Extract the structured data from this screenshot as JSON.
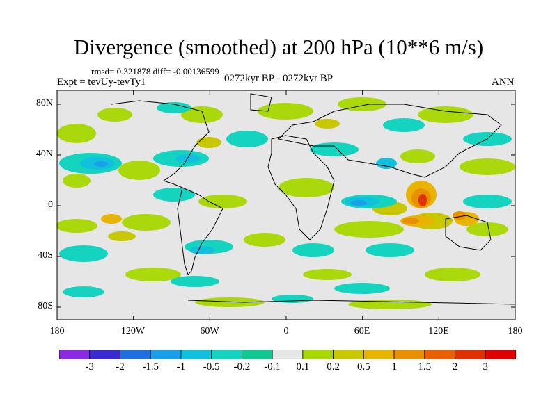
{
  "title": "Divergence (smoothed) at 200 hPa (10**6 m/s)",
  "stats_line": "rmsd= 0.321878 diff= -0.00136599",
  "experiment": "Expt = tevUy-tevTy1",
  "period": "0272kyr BP - 0272kyr BP",
  "season": "ANN",
  "map": {
    "projection": "cylindrical equidistant",
    "lon_range": [
      -180,
      180
    ],
    "lat_range": [
      -90,
      90
    ],
    "lat_ticks": [
      "80N",
      "40N",
      "0",
      "40S",
      "80S"
    ],
    "lon_ticks": [
      "180",
      "120W",
      "60W",
      "0",
      "60E",
      "120E",
      "180"
    ],
    "background_color": "#e6e6e6",
    "coastline_color": "#000000"
  },
  "colorbar": {
    "labels": [
      "-3",
      "-2",
      "-1.5",
      "-1",
      "-0.5",
      "-0.2",
      "-0.1",
      "0.1",
      "0.2",
      "0.5",
      "1",
      "1.5",
      "2",
      "3"
    ],
    "colors": [
      "#8a2be2",
      "#3a2bd0",
      "#1e6fe0",
      "#1aa0e8",
      "#10c0dc",
      "#14d4c0",
      "#10c890",
      "#e6e6e6",
      "#a8d800",
      "#c8c800",
      "#e8b400",
      "#e89000",
      "#e86000",
      "#e03000",
      "#e00000"
    ]
  }
}
